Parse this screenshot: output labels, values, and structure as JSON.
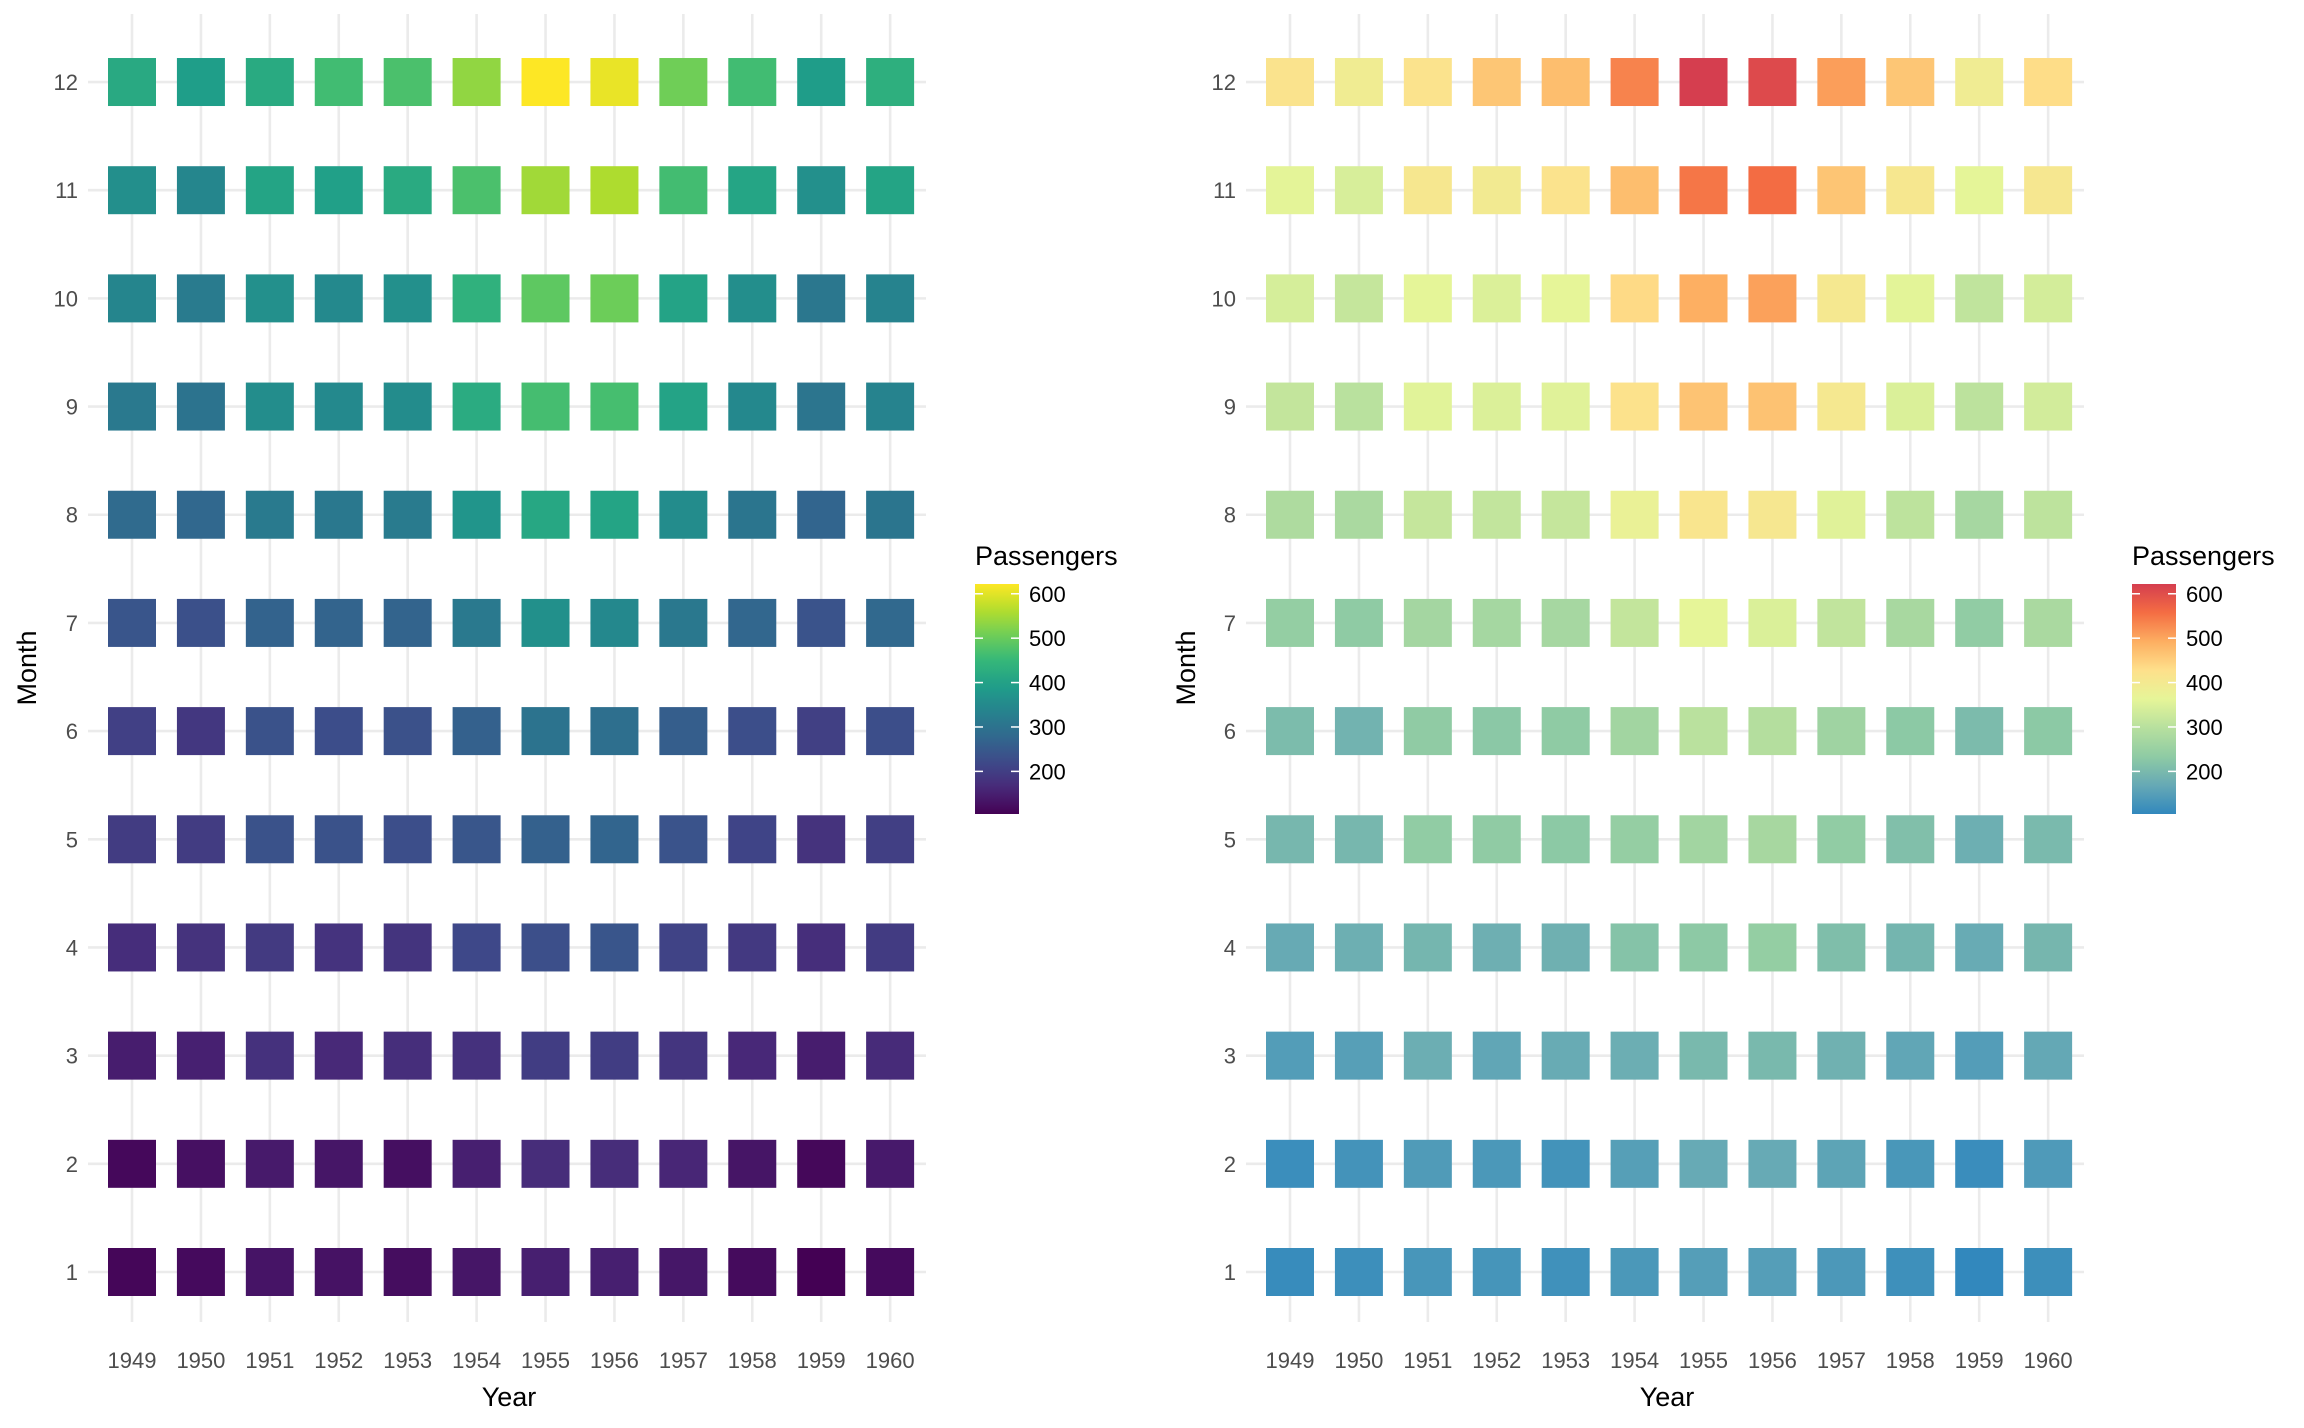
{
  "chart_data": [
    {
      "type": "heatmap",
      "panel": "left",
      "xlabel": "Year",
      "ylabel": "Month",
      "legend_title": "Passengers",
      "legend_position": "right",
      "legend_ticks": [
        200,
        300,
        400,
        500,
        600
      ],
      "value_range": [
        104,
        622
      ],
      "color_scale": [
        "#440154",
        "#482878",
        "#3e4989",
        "#31688e",
        "#26828e",
        "#1f9e89",
        "#35b779",
        "#6ece58",
        "#b5de2b",
        "#fde725"
      ],
      "grid": true,
      "x": [
        "1949",
        "1950",
        "1951",
        "1952",
        "1953",
        "1954",
        "1955",
        "1956",
        "1957",
        "1958",
        "1959",
        "1960"
      ],
      "y": [
        "1",
        "2",
        "3",
        "4",
        "5",
        "6",
        "7",
        "8",
        "9",
        "10",
        "11",
        "12"
      ],
      "values": [
        [
          112,
          118,
          132,
          129,
          121,
          135,
          148,
          148,
          136,
          119,
          104,
          118
        ],
        [
          115,
          126,
          141,
          135,
          125,
          149,
          170,
          170,
          158,
          133,
          114,
          140
        ],
        [
          145,
          150,
          178,
          163,
          172,
          178,
          199,
          199,
          184,
          162,
          146,
          166
        ],
        [
          171,
          180,
          193,
          181,
          183,
          218,
          230,
          242,
          209,
          191,
          172,
          194
        ],
        [
          196,
          196,
          236,
          235,
          229,
          243,
          264,
          272,
          237,
          211,
          180,
          201
        ],
        [
          204,
          188,
          235,
          227,
          234,
          264,
          302,
          293,
          259,
          229,
          203,
          229
        ],
        [
          242,
          233,
          267,
          269,
          270,
          315,
          364,
          347,
          312,
          274,
          237,
          278
        ],
        [
          284,
          277,
          317,
          313,
          318,
          374,
          413,
          405,
          355,
          306,
          271,
          306
        ],
        [
          315,
          301,
          356,
          348,
          355,
          422,
          465,
          467,
          404,
          347,
          305,
          336
        ],
        [
          340,
          318,
          362,
          348,
          363,
          435,
          491,
          505,
          404,
          359,
          310,
          337
        ],
        [
          360,
          342,
          406,
          396,
          420,
          472,
          548,
          559,
          463,
          407,
          362,
          405
        ],
        [
          417,
          391,
          419,
          461,
          472,
          535,
          622,
          606,
          508,
          461,
          390,
          432
        ]
      ]
    },
    {
      "type": "heatmap",
      "panel": "right",
      "xlabel": "Year",
      "ylabel": "Month",
      "legend_title": "Passengers",
      "legend_position": "right",
      "legend_ticks": [
        200,
        300,
        400,
        500,
        600
      ],
      "value_range": [
        104,
        622
      ],
      "color_scale": [
        "#3288bd",
        "#66a9b5",
        "#8fcba4",
        "#b7e09e",
        "#e6f598",
        "#fee08b",
        "#fdae61",
        "#f46d43",
        "#d53e4f"
      ],
      "grid": true,
      "x": [
        "1949",
        "1950",
        "1951",
        "1952",
        "1953",
        "1954",
        "1955",
        "1956",
        "1957",
        "1958",
        "1959",
        "1960"
      ],
      "y": [
        "1",
        "2",
        "3",
        "4",
        "5",
        "6",
        "7",
        "8",
        "9",
        "10",
        "11",
        "12"
      ],
      "values": [
        [
          112,
          118,
          132,
          129,
          121,
          135,
          148,
          148,
          136,
          119,
          104,
          118
        ],
        [
          115,
          126,
          141,
          135,
          125,
          149,
          170,
          170,
          158,
          133,
          114,
          140
        ],
        [
          145,
          150,
          178,
          163,
          172,
          178,
          199,
          199,
          184,
          162,
          146,
          166
        ],
        [
          171,
          180,
          193,
          181,
          183,
          218,
          230,
          242,
          209,
          191,
          172,
          194
        ],
        [
          196,
          196,
          236,
          235,
          229,
          243,
          264,
          272,
          237,
          211,
          180,
          201
        ],
        [
          204,
          188,
          235,
          227,
          234,
          264,
          302,
          293,
          259,
          229,
          203,
          229
        ],
        [
          242,
          233,
          267,
          269,
          270,
          315,
          364,
          347,
          312,
          274,
          237,
          278
        ],
        [
          284,
          277,
          317,
          313,
          318,
          374,
          413,
          405,
          355,
          306,
          271,
          306
        ],
        [
          315,
          301,
          356,
          348,
          355,
          422,
          465,
          467,
          404,
          347,
          305,
          336
        ],
        [
          340,
          318,
          362,
          348,
          363,
          435,
          491,
          505,
          404,
          359,
          310,
          337
        ],
        [
          360,
          342,
          406,
          396,
          420,
          472,
          548,
          559,
          463,
          407,
          362,
          405
        ],
        [
          417,
          391,
          419,
          461,
          472,
          535,
          622,
          606,
          508,
          461,
          390,
          432
        ]
      ]
    }
  ]
}
